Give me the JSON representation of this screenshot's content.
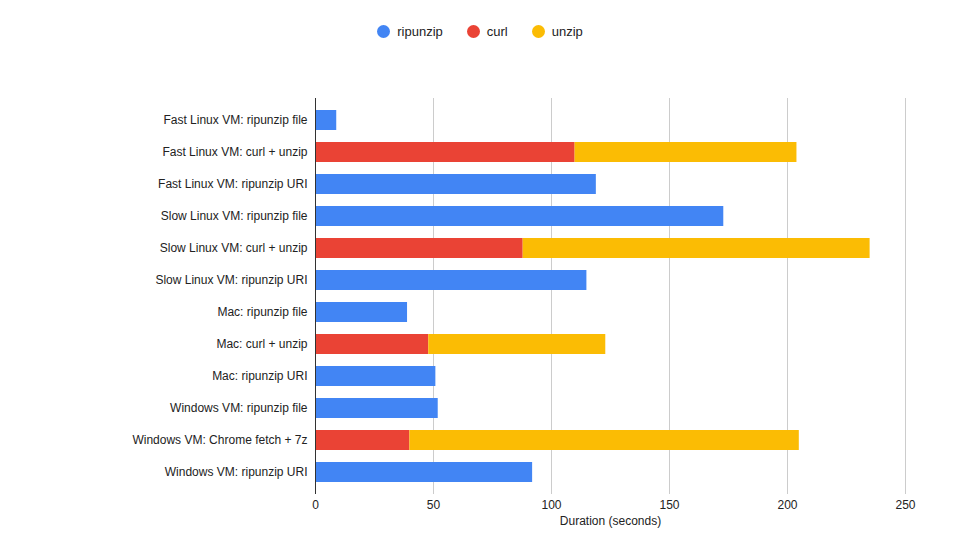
{
  "chart_data": {
    "type": "bar",
    "orientation": "horizontal",
    "stacked": true,
    "grid": true,
    "legend": "top",
    "x_label": "Duration (seconds)",
    "categories": [
      "Fast Linux VM: ripunzip file",
      "Fast Linux VM: curl + unzip",
      "Fast Linux VM: ripunzip URI",
      "Slow Linux VM: ripunzip file",
      "Slow Linux VM: curl + unzip",
      "Slow Linux VM: ripunzip URI",
      "Mac: ripunzip file",
      "Mac: curl + unzip",
      "Mac: ripunzip URI",
      "Windows VM: ripunzip file",
      "Windows VM: Chrome fetch + 7z",
      "Windows VM: ripunzip URI"
    ],
    "series": [
      {
        "name": "ripunzip",
        "color": "#4285f4",
        "values": [
          9,
          null,
          119,
          173,
          null,
          115,
          39,
          null,
          51,
          52,
          null,
          92
        ]
      },
      {
        "name": "curl",
        "color": "#ea4335",
        "values": [
          null,
          110,
          null,
          null,
          88,
          null,
          null,
          48,
          null,
          null,
          40,
          null
        ]
      },
      {
        "name": "unzip",
        "color": "#fbbc04",
        "values": [
          null,
          94,
          null,
          null,
          147,
          null,
          null,
          75,
          null,
          null,
          165,
          null
        ]
      }
    ],
    "xlim": [
      0,
      250
    ],
    "xticks": [
      0,
      50,
      100,
      150,
      200,
      250
    ]
  }
}
